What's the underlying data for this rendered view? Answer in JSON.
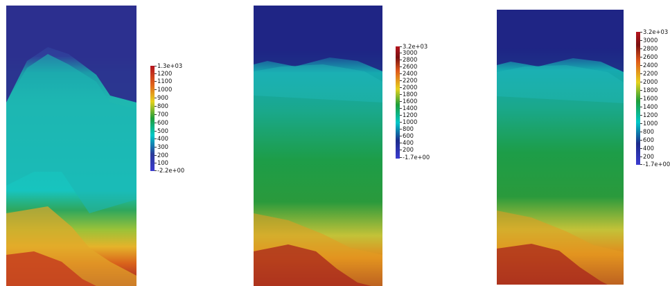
{
  "panels": [
    {
      "colorbar": {
        "max_label": "1.3e+03",
        "min_label": "-2.2e+00",
        "ticks": [
          "1200",
          "1100",
          "1000",
          "900",
          "800",
          "700",
          "600",
          "500",
          "400",
          "300",
          "200",
          "100"
        ]
      }
    },
    {
      "colorbar": {
        "max_label": "3.2e+03",
        "min_label": "-1.7e+00",
        "ticks": [
          "3000",
          "2800",
          "2600",
          "2400",
          "2200",
          "2000",
          "1800",
          "1600",
          "1400",
          "1200",
          "1000",
          "800",
          "600",
          "400",
          "200"
        ]
      }
    },
    {
      "colorbar": {
        "max_label": "3.2e+03",
        "min_label": "-1.7e+00",
        "ticks": [
          "3000",
          "2800",
          "2600",
          "2400",
          "2200",
          "2000",
          "1800",
          "1600",
          "1400",
          "1200",
          "1000",
          "800",
          "600",
          "400",
          "200"
        ]
      }
    }
  ],
  "colors": {
    "low": "#2a2a8c",
    "mid": "#00c8c8",
    "green": "#1e9e3a",
    "yellow": "#e6d21e",
    "high": "#b4141e"
  }
}
